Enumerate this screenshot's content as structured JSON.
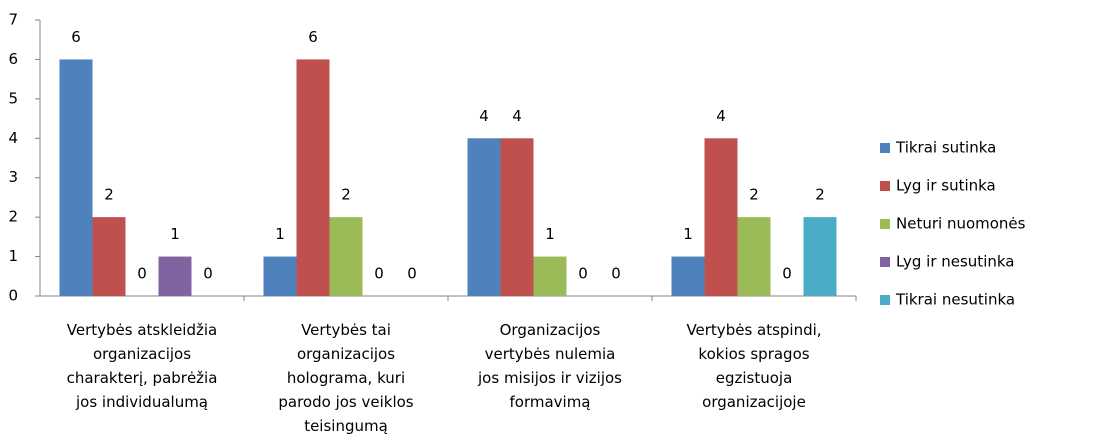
{
  "chart_data": {
    "type": "bar",
    "categories": [
      "Vertybės atskleidžia\norganizacijos\ncharakterį, pabrėžia\njos individualumą",
      "Vertybės tai\norganizacijos\nholograma, kuri\nparodo jos veiklos\nteisingumą",
      "Organizacijos\nvertybės  nulemia\njos misijos ir vizijos\nformavimą",
      "Vertybės atspindi,\nkokios spragos\negzistuoja\norganizacijoje"
    ],
    "series": [
      {
        "name": "Tikrai sutinka",
        "color": "#4f81bd",
        "values": [
          6,
          1,
          4,
          1
        ]
      },
      {
        "name": "Lyg ir sutinka",
        "color": "#c0504d",
        "values": [
          2,
          6,
          4,
          4
        ]
      },
      {
        "name": "Neturi nuomonės",
        "color": "#9bbb59",
        "values": [
          0,
          2,
          1,
          2
        ]
      },
      {
        "name": "Lyg ir nesutinka",
        "color": "#8064a2",
        "values": [
          1,
          0,
          0,
          0
        ]
      },
      {
        "name": "Tikrai nesutinka",
        "color": "#4bacc6",
        "values": [
          0,
          0,
          0,
          2
        ]
      }
    ],
    "ylim": [
      0,
      7
    ],
    "yticks": [
      0,
      1,
      2,
      3,
      4,
      5,
      6,
      7
    ],
    "grid": false,
    "legend": "right"
  }
}
